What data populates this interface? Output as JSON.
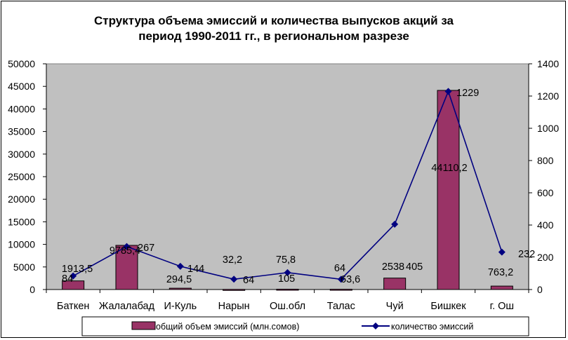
{
  "chart_data": {
    "type": "bar+line",
    "title_lines": [
      "Структура объема эмиссий и количества выпусков акций за",
      "период 1990-2011 гг., в региональном разрезе"
    ],
    "categories": [
      "Баткен",
      "Жалалабад",
      "И-Куль",
      "Нарын",
      "Ош.обл",
      "Талас",
      "Чуй",
      "Бишкек",
      "г. Ош"
    ],
    "series": [
      {
        "name": "общий объем эмиссий (млн.сомов)",
        "type": "bar",
        "axis": "left",
        "values": [
          1913.5,
          9785.4,
          294.5,
          32.2,
          75.8,
          64,
          2538,
          44110.2,
          763.2
        ],
        "labels": [
          "1913,5",
          "9785,4",
          "294,5",
          "32,2",
          "75,8",
          "64",
          "2538",
          "44110,2",
          "763,2"
        ],
        "color": "#993366"
      },
      {
        "name": "количество эмиссий",
        "type": "line",
        "axis": "right",
        "values": [
          84,
          267,
          144,
          64,
          105,
          63.6,
          405,
          1229,
          232
        ],
        "labels": [
          "84",
          "267",
          "144",
          "64",
          "105",
          "63,6",
          "405",
          "1229",
          "232"
        ],
        "color": "#000080"
      }
    ],
    "y_left": {
      "min": 0,
      "max": 50000,
      "step": 5000,
      "ticks": [
        "0",
        "5000",
        "10000",
        "15000",
        "20000",
        "25000",
        "30000",
        "35000",
        "40000",
        "45000",
        "50000"
      ]
    },
    "y_right": {
      "min": 0,
      "max": 1400,
      "step": 200,
      "ticks": [
        "0",
        "200",
        "400",
        "600",
        "800",
        "1000",
        "1200",
        "1400"
      ]
    },
    "plot_background": "#C0C0C0",
    "grid": false,
    "legend_position": "bottom"
  }
}
